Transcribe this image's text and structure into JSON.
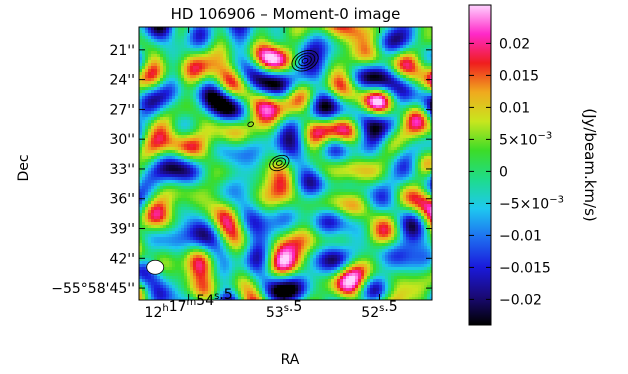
{
  "chart_data": {
    "type": "heatmap",
    "title": "HD 106906 – Moment-0 image",
    "xlabel": "RA",
    "ylabel": "Dec",
    "x_ticks": [
      {
        "label": "12h17m54s.5",
        "pre": "12",
        "sup1": "h",
        "mid": "17",
        "sup2": "m",
        "post": "54",
        "sup3": "s",
        "tail": ".5",
        "ra_sec": 54.5
      },
      {
        "label": "53s.5",
        "pre": "53",
        "sup3": "s",
        "tail": ".5",
        "ra_sec": 53.5
      },
      {
        "label": "52s.5",
        "pre": "52",
        "sup3": "s",
        "tail": ".5",
        "ra_sec": 52.5
      }
    ],
    "x_range_ra_sec": [
      55.02,
      51.95
    ],
    "y_ticks": [
      {
        "label": "21''",
        "dec_arcsec": 21
      },
      {
        "label": "24''",
        "dec_arcsec": 24
      },
      {
        "label": "27''",
        "dec_arcsec": 27
      },
      {
        "label": "30''",
        "dec_arcsec": 30
      },
      {
        "label": "33''",
        "dec_arcsec": 33
      },
      {
        "label": "36''",
        "dec_arcsec": 36
      },
      {
        "label": "39''",
        "dec_arcsec": 39
      },
      {
        "label": "42''",
        "dec_arcsec": 42
      },
      {
        "label": "−55°58'45''",
        "dec_arcsec": 45
      }
    ],
    "y_range_dec_arcsec": [
      18.7,
      46.2
    ],
    "colorbar": {
      "label": "(Jy/beam.km/s)",
      "range": [
        -0.024,
        0.026
      ],
      "ticks": [
        {
          "label": "0.02",
          "value": 0.02
        },
        {
          "label": "0.015",
          "value": 0.015
        },
        {
          "label": "0.01",
          "value": 0.01
        },
        {
          "label": "5×10−3",
          "base": "5×10",
          "exp": "−3",
          "value": 0.005
        },
        {
          "label": "0",
          "value": 0
        },
        {
          "label": "−5×10−3",
          "base": "−5×10",
          "exp": "−3",
          "value": -0.005
        },
        {
          "label": "−0.01",
          "value": -0.01
        },
        {
          "label": "−0.015",
          "value": -0.015
        },
        {
          "label": "−0.02",
          "value": -0.02
        }
      ],
      "colormap": [
        "#000000",
        "#1a0a78",
        "#1a1adc",
        "#1e6ef0",
        "#1ec8f0",
        "#1edc8c",
        "#3cdc28",
        "#c8e61e",
        "#f0aa1e",
        "#f01e1e",
        "#ff28c8",
        "#ffd2ff"
      ]
    },
    "contour_sources": [
      {
        "ra_sec": 53.28,
        "dec_arcsec": 22.1,
        "levels": 4
      },
      {
        "ra_sec": 53.55,
        "dec_arcsec": 32.4,
        "levels": 3
      },
      {
        "ra_sec": 53.85,
        "dec_arcsec": 28.5,
        "levels": 1
      }
    ],
    "beam": {
      "ra_sec": 54.85,
      "dec_arcsec": 42.9
    },
    "grid": false
  }
}
